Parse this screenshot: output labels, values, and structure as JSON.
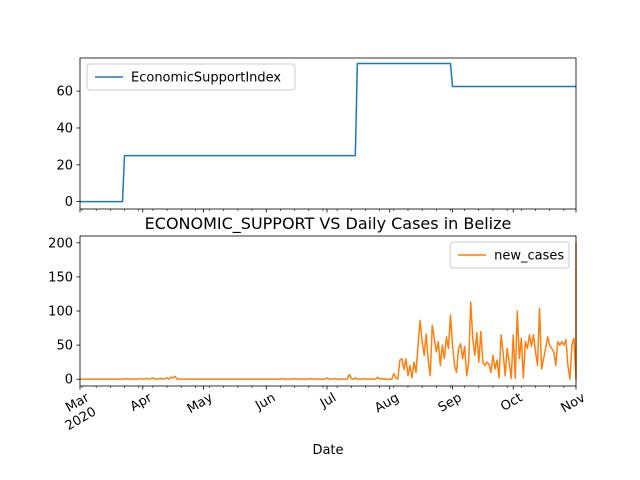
{
  "chart_data": [
    {
      "type": "line",
      "title": "",
      "xlabel": "",
      "ylabel": "",
      "ylim": [
        -4,
        78
      ],
      "yticks": [
        0,
        20,
        40,
        60
      ],
      "legend": {
        "placement": "top-left"
      },
      "colors": {
        "line": "#1f77b4"
      },
      "series": [
        {
          "name": "EconomicSupportIndex",
          "points": [
            [
              "2020-03-01",
              0
            ],
            [
              "2020-03-22",
              0
            ],
            [
              "2020-03-23",
              25
            ],
            [
              "2020-07-15",
              25
            ],
            [
              "2020-07-16",
              75
            ],
            [
              "2020-08-31",
              75
            ],
            [
              "2020-09-01",
              62.5
            ],
            [
              "2020-11-01",
              62.5
            ]
          ]
        }
      ]
    },
    {
      "type": "line",
      "title": "ECONOMIC_SUPPORT VS Daily Cases in Belize",
      "xlabel": "Date",
      "ylabel": "",
      "ylim": [
        -10,
        210
      ],
      "yticks": [
        0,
        50,
        100,
        150,
        200
      ],
      "xlim": [
        "2020-03-01",
        "2020-11-01"
      ],
      "xticks": [
        {
          "date": "2020-03-01",
          "label": "Mar",
          "sublabel": "2020"
        },
        {
          "date": "2020-04-01",
          "label": "Apr"
        },
        {
          "date": "2020-05-01",
          "label": "May"
        },
        {
          "date": "2020-06-01",
          "label": "Jun"
        },
        {
          "date": "2020-07-01",
          "label": "Jul"
        },
        {
          "date": "2020-08-01",
          "label": "Aug"
        },
        {
          "date": "2020-09-01",
          "label": "Sep"
        },
        {
          "date": "2020-10-01",
          "label": "Oct"
        },
        {
          "date": "2020-11-01",
          "label": "Nov"
        }
      ],
      "legend": {
        "placement": "top-right"
      },
      "colors": {
        "line": "#ff7f0e"
      },
      "series": [
        {
          "name": "new_cases",
          "points": [
            [
              "2020-03-01",
              0
            ],
            [
              "2020-03-23",
              0
            ],
            [
              "2020-03-24",
              1
            ],
            [
              "2020-03-25",
              0
            ],
            [
              "2020-03-30",
              0
            ],
            [
              "2020-03-31",
              1
            ],
            [
              "2020-04-01",
              0
            ],
            [
              "2020-04-03",
              1
            ],
            [
              "2020-04-04",
              0
            ],
            [
              "2020-04-06",
              2
            ],
            [
              "2020-04-07",
              0
            ],
            [
              "2020-04-10",
              1
            ],
            [
              "2020-04-11",
              0
            ],
            [
              "2020-04-13",
              2
            ],
            [
              "2020-04-14",
              0
            ],
            [
              "2020-04-15",
              3
            ],
            [
              "2020-04-16",
              2
            ],
            [
              "2020-04-17",
              4
            ],
            [
              "2020-04-18",
              0
            ],
            [
              "2020-06-08",
              0
            ],
            [
              "2020-06-09",
              1
            ],
            [
              "2020-06-10",
              0
            ],
            [
              "2020-06-14",
              0
            ],
            [
              "2020-06-15",
              1
            ],
            [
              "2020-06-16",
              0
            ],
            [
              "2020-06-22",
              0
            ],
            [
              "2020-06-23",
              1
            ],
            [
              "2020-06-24",
              0
            ],
            [
              "2020-06-30",
              0
            ],
            [
              "2020-07-01",
              2
            ],
            [
              "2020-07-02",
              0
            ],
            [
              "2020-07-04",
              0
            ],
            [
              "2020-07-05",
              1
            ],
            [
              "2020-07-06",
              0
            ],
            [
              "2020-07-11",
              0
            ],
            [
              "2020-07-12",
              7
            ],
            [
              "2020-07-13",
              1
            ],
            [
              "2020-07-14",
              0
            ],
            [
              "2020-07-15",
              2
            ],
            [
              "2020-07-16",
              0
            ],
            [
              "2020-07-18",
              0
            ],
            [
              "2020-07-19",
              1
            ],
            [
              "2020-07-20",
              0
            ],
            [
              "2020-07-25",
              0
            ],
            [
              "2020-07-26",
              3
            ],
            [
              "2020-07-27",
              0
            ],
            [
              "2020-07-28",
              1
            ],
            [
              "2020-07-29",
              0
            ],
            [
              "2020-08-02",
              0
            ],
            [
              "2020-08-03",
              8
            ],
            [
              "2020-08-04",
              2
            ],
            [
              "2020-08-05",
              0
            ],
            [
              "2020-08-06",
              28
            ],
            [
              "2020-08-07",
              30
            ],
            [
              "2020-08-08",
              14
            ],
            [
              "2020-08-09",
              30
            ],
            [
              "2020-08-10",
              5
            ],
            [
              "2020-08-11",
              20
            ],
            [
              "2020-08-12",
              2
            ],
            [
              "2020-08-13",
              25
            ],
            [
              "2020-08-14",
              10
            ],
            [
              "2020-08-15",
              50
            ],
            [
              "2020-08-16",
              86
            ],
            [
              "2020-08-17",
              55
            ],
            [
              "2020-08-18",
              35
            ],
            [
              "2020-08-19",
              66
            ],
            [
              "2020-08-20",
              28
            ],
            [
              "2020-08-21",
              5
            ],
            [
              "2020-08-22",
              79
            ],
            [
              "2020-08-23",
              60
            ],
            [
              "2020-08-24",
              40
            ],
            [
              "2020-08-25",
              55
            ],
            [
              "2020-08-26",
              20
            ],
            [
              "2020-08-27",
              50
            ],
            [
              "2020-08-28",
              30
            ],
            [
              "2020-08-29",
              62
            ],
            [
              "2020-08-30",
              45
            ],
            [
              "2020-08-31",
              94
            ],
            [
              "2020-09-01",
              50
            ],
            [
              "2020-09-02",
              20
            ],
            [
              "2020-09-03",
              10
            ],
            [
              "2020-09-04",
              45
            ],
            [
              "2020-09-05",
              52
            ],
            [
              "2020-09-06",
              30
            ],
            [
              "2020-09-07",
              48
            ],
            [
              "2020-09-08",
              5
            ],
            [
              "2020-09-09",
              25
            ],
            [
              "2020-09-10",
              113
            ],
            [
              "2020-09-11",
              60
            ],
            [
              "2020-09-12",
              35
            ],
            [
              "2020-09-13",
              68
            ],
            [
              "2020-09-14",
              25
            ],
            [
              "2020-09-15",
              70
            ],
            [
              "2020-09-16",
              25
            ],
            [
              "2020-09-17",
              20
            ],
            [
              "2020-09-18",
              25
            ],
            [
              "2020-09-19",
              22
            ],
            [
              "2020-09-20",
              10
            ],
            [
              "2020-09-21",
              35
            ],
            [
              "2020-09-22",
              15
            ],
            [
              "2020-09-23",
              28
            ],
            [
              "2020-09-24",
              2
            ],
            [
              "2020-09-25",
              65
            ],
            [
              "2020-09-26",
              40
            ],
            [
              "2020-09-27",
              5
            ],
            [
              "2020-09-28",
              45
            ],
            [
              "2020-09-29",
              25
            ],
            [
              "2020-09-30",
              1
            ],
            [
              "2020-10-01",
              65
            ],
            [
              "2020-10-02",
              1
            ],
            [
              "2020-10-03",
              100
            ],
            [
              "2020-10-04",
              30
            ],
            [
              "2020-10-05",
              60
            ],
            [
              "2020-10-06",
              2
            ],
            [
              "2020-10-07",
              55
            ],
            [
              "2020-10-08",
              45
            ],
            [
              "2020-10-09",
              65
            ],
            [
              "2020-10-10",
              48
            ],
            [
              "2020-10-11",
              65
            ],
            [
              "2020-10-12",
              40
            ],
            [
              "2020-10-13",
              20
            ],
            [
              "2020-10-14",
              104
            ],
            [
              "2020-10-15",
              15
            ],
            [
              "2020-10-16",
              30
            ],
            [
              "2020-10-17",
              45
            ],
            [
              "2020-10-18",
              62
            ],
            [
              "2020-10-19",
              50
            ],
            [
              "2020-10-20",
              45
            ],
            [
              "2020-10-21",
              40
            ],
            [
              "2020-10-22",
              20
            ],
            [
              "2020-10-23",
              55
            ],
            [
              "2020-10-24",
              50
            ],
            [
              "2020-10-25",
              55
            ],
            [
              "2020-10-26",
              50
            ],
            [
              "2020-10-27",
              58
            ],
            [
              "2020-10-28",
              20
            ],
            [
              "2020-10-29",
              0
            ],
            [
              "2020-10-30",
              50
            ],
            [
              "2020-10-31",
              60
            ],
            [
              "2020-11-01",
              0
            ],
            [
              "2020-11-01",
              200
            ],
            [
              "2020-11-01",
              25
            ],
            [
              "2020-11-01",
              90
            ]
          ]
        }
      ]
    }
  ]
}
